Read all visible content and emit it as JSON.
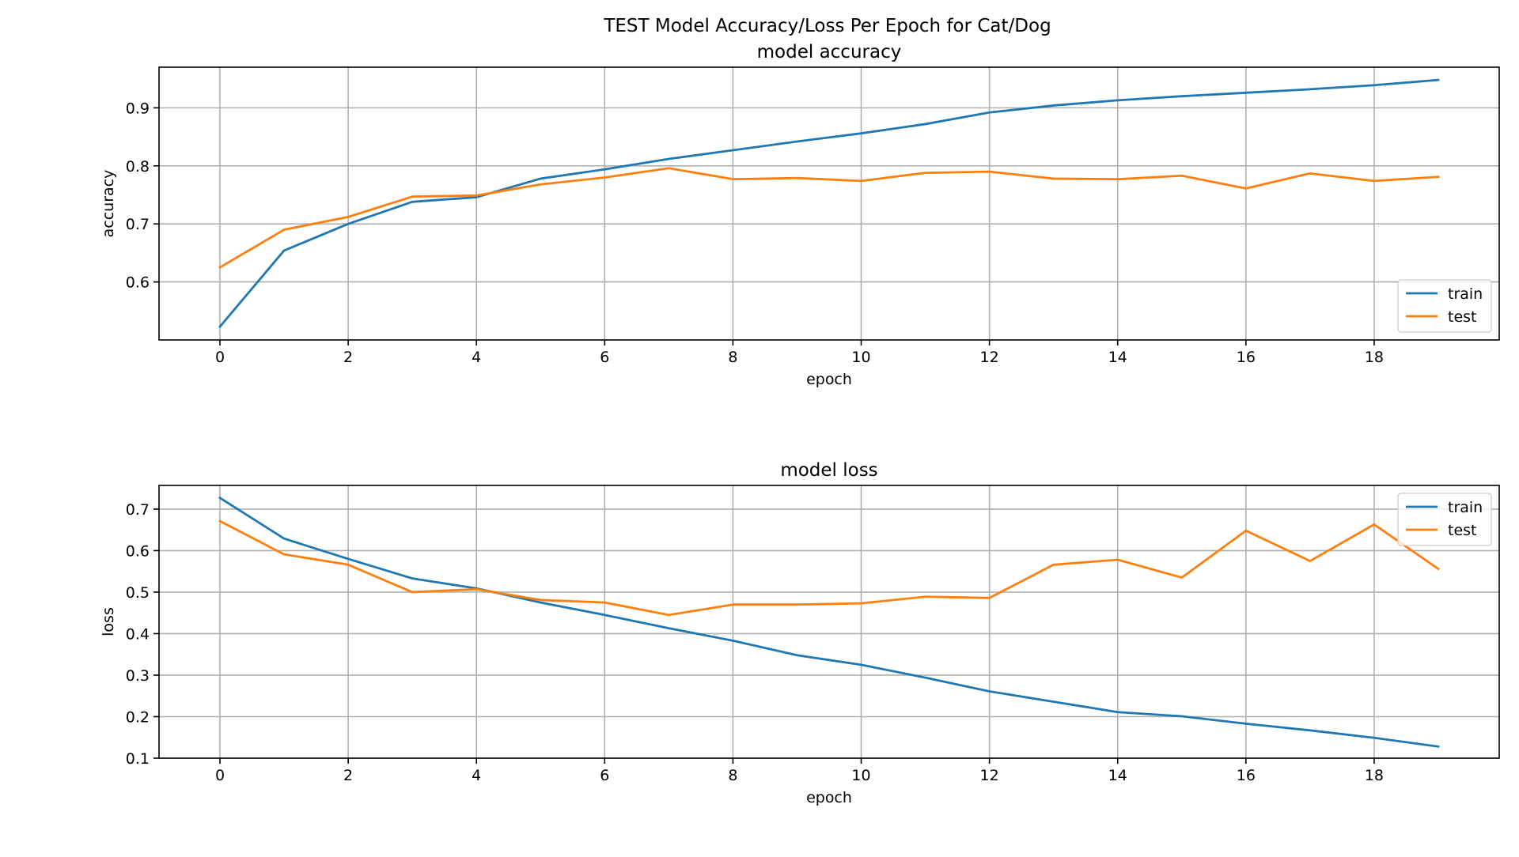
{
  "figure": {
    "suptitle": "TEST Model Accuracy/Loss Per Epoch for Cat/Dog"
  },
  "chart_data": [
    {
      "type": "line",
      "title": "model accuracy",
      "xlabel": "epoch",
      "ylabel": "accuracy",
      "x": [
        0,
        1,
        2,
        3,
        4,
        5,
        6,
        7,
        8,
        9,
        10,
        11,
        12,
        13,
        14,
        15,
        16,
        17,
        18,
        19
      ],
      "xlim": [
        -0.95,
        19.95
      ],
      "ylim": [
        0.5,
        0.97
      ],
      "xticks": [
        0,
        2,
        4,
        6,
        8,
        10,
        12,
        14,
        16,
        18
      ],
      "yticks": [
        0.6,
        0.7,
        0.8,
        0.9
      ],
      "xtick_labels": [
        "0",
        "2",
        "4",
        "6",
        "8",
        "10",
        "12",
        "14",
        "16",
        "18"
      ],
      "ytick_labels": [
        "0.6",
        "0.7",
        "0.8",
        "0.9"
      ],
      "grid": true,
      "legend_position": "lower-right",
      "series": [
        {
          "name": "train",
          "color": "#1f77b4",
          "values": [
            0.523,
            0.654,
            0.7,
            0.738,
            0.746,
            0.778,
            0.794,
            0.812,
            0.827,
            0.842,
            0.856,
            0.872,
            0.892,
            0.904,
            0.913,
            0.92,
            0.926,
            0.932,
            0.939,
            0.948
          ]
        },
        {
          "name": "test",
          "color": "#ff7f0e",
          "values": [
            0.625,
            0.69,
            0.712,
            0.747,
            0.749,
            0.768,
            0.78,
            0.796,
            0.777,
            0.779,
            0.774,
            0.788,
            0.79,
            0.778,
            0.777,
            0.783,
            0.761,
            0.787,
            0.774,
            0.781
          ]
        }
      ]
    },
    {
      "type": "line",
      "title": "model loss",
      "xlabel": "epoch",
      "ylabel": "loss",
      "x": [
        0,
        1,
        2,
        3,
        4,
        5,
        6,
        7,
        8,
        9,
        10,
        11,
        12,
        13,
        14,
        15,
        16,
        17,
        18,
        19
      ],
      "xlim": [
        -0.95,
        19.95
      ],
      "ylim": [
        0.1,
        0.757
      ],
      "xticks": [
        0,
        2,
        4,
        6,
        8,
        10,
        12,
        14,
        16,
        18
      ],
      "yticks": [
        0.1,
        0.2,
        0.3,
        0.4,
        0.5,
        0.6,
        0.7
      ],
      "xtick_labels": [
        "0",
        "2",
        "4",
        "6",
        "8",
        "10",
        "12",
        "14",
        "16",
        "18"
      ],
      "ytick_labels": [
        "0.1",
        "0.2",
        "0.3",
        "0.4",
        "0.5",
        "0.6",
        "0.7"
      ],
      "grid": true,
      "legend_position": "upper-right",
      "series": [
        {
          "name": "train",
          "color": "#1f77b4",
          "values": [
            0.727,
            0.629,
            0.58,
            0.533,
            0.509,
            0.475,
            0.445,
            0.413,
            0.383,
            0.348,
            0.325,
            0.294,
            0.261,
            0.236,
            0.211,
            0.201,
            0.183,
            0.167,
            0.149,
            0.128
          ]
        },
        {
          "name": "test",
          "color": "#ff7f0e",
          "values": [
            0.671,
            0.591,
            0.566,
            0.5,
            0.507,
            0.481,
            0.475,
            0.445,
            0.47,
            0.47,
            0.473,
            0.489,
            0.486,
            0.566,
            0.578,
            0.535,
            0.648,
            0.575,
            0.663,
            0.556
          ]
        }
      ]
    }
  ]
}
